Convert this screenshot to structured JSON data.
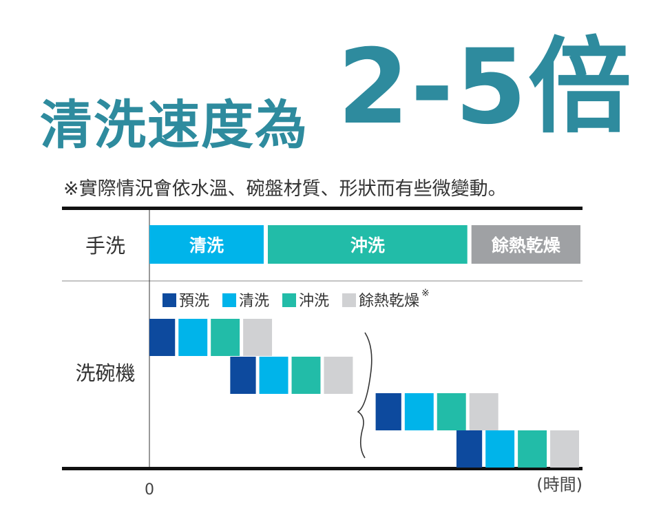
{
  "headline": {
    "text": "清洗速度為",
    "big": "2-5倍"
  },
  "note": "※實際情況會依水溫、碗盤材質、形狀而有些微變動。",
  "colors": {
    "prewash": "#0d4a9e",
    "wash": "#00b4ea",
    "rinse": "#22bca8",
    "dry": "#d0d1d3",
    "dry_bar": "#9fa1a4",
    "headline": "#2e8b9e"
  },
  "chart_data": {
    "type": "bar",
    "rows": [
      {
        "label": "手洗",
        "segments": [
          {
            "label": "清洗",
            "phase": "wash",
            "start": 0,
            "end": 3.6
          },
          {
            "label": "沖洗",
            "phase": "rinse",
            "start": 3.6,
            "end": 9.9
          },
          {
            "label": "餘熱乾燥",
            "phase": "dry",
            "start": 9.9,
            "end": 13.4
          }
        ]
      },
      {
        "label": "洗碗機",
        "cycles": [
          {
            "start": 0,
            "segments": [
              {
                "phase": "prewash",
                "dur": 0.9
              },
              {
                "phase": "wash",
                "dur": 1.0
              },
              {
                "phase": "rinse",
                "dur": 1.0
              },
              {
                "phase": "dry",
                "dur": 1.0
              }
            ]
          },
          {
            "start": 2.5,
            "segments": [
              {
                "phase": "prewash",
                "dur": 0.9
              },
              {
                "phase": "wash",
                "dur": 1.0
              },
              {
                "phase": "rinse",
                "dur": 1.0
              },
              {
                "phase": "dry",
                "dur": 1.0
              }
            ]
          },
          {
            "start": 7.0,
            "segments": [
              {
                "phase": "prewash",
                "dur": 0.9
              },
              {
                "phase": "wash",
                "dur": 1.0
              },
              {
                "phase": "rinse",
                "dur": 1.0
              },
              {
                "phase": "dry",
                "dur": 1.0
              }
            ]
          },
          {
            "start": 9.5,
            "segments": [
              {
                "phase": "prewash",
                "dur": 0.9
              },
              {
                "phase": "wash",
                "dur": 1.0
              },
              {
                "phase": "rinse",
                "dur": 1.0
              },
              {
                "phase": "dry",
                "dur": 1.0
              }
            ]
          }
        ]
      }
    ],
    "legend": [
      {
        "label": "預洗",
        "phase": "prewash"
      },
      {
        "label": "清洗",
        "phase": "wash"
      },
      {
        "label": "沖洗",
        "phase": "rinse"
      },
      {
        "label": "餘熱乾燥",
        "phase": "dry",
        "mark": "※"
      }
    ],
    "x_origin_label": "0",
    "xlabel": "(時間)",
    "xlim": [
      0,
      13.4
    ]
  }
}
